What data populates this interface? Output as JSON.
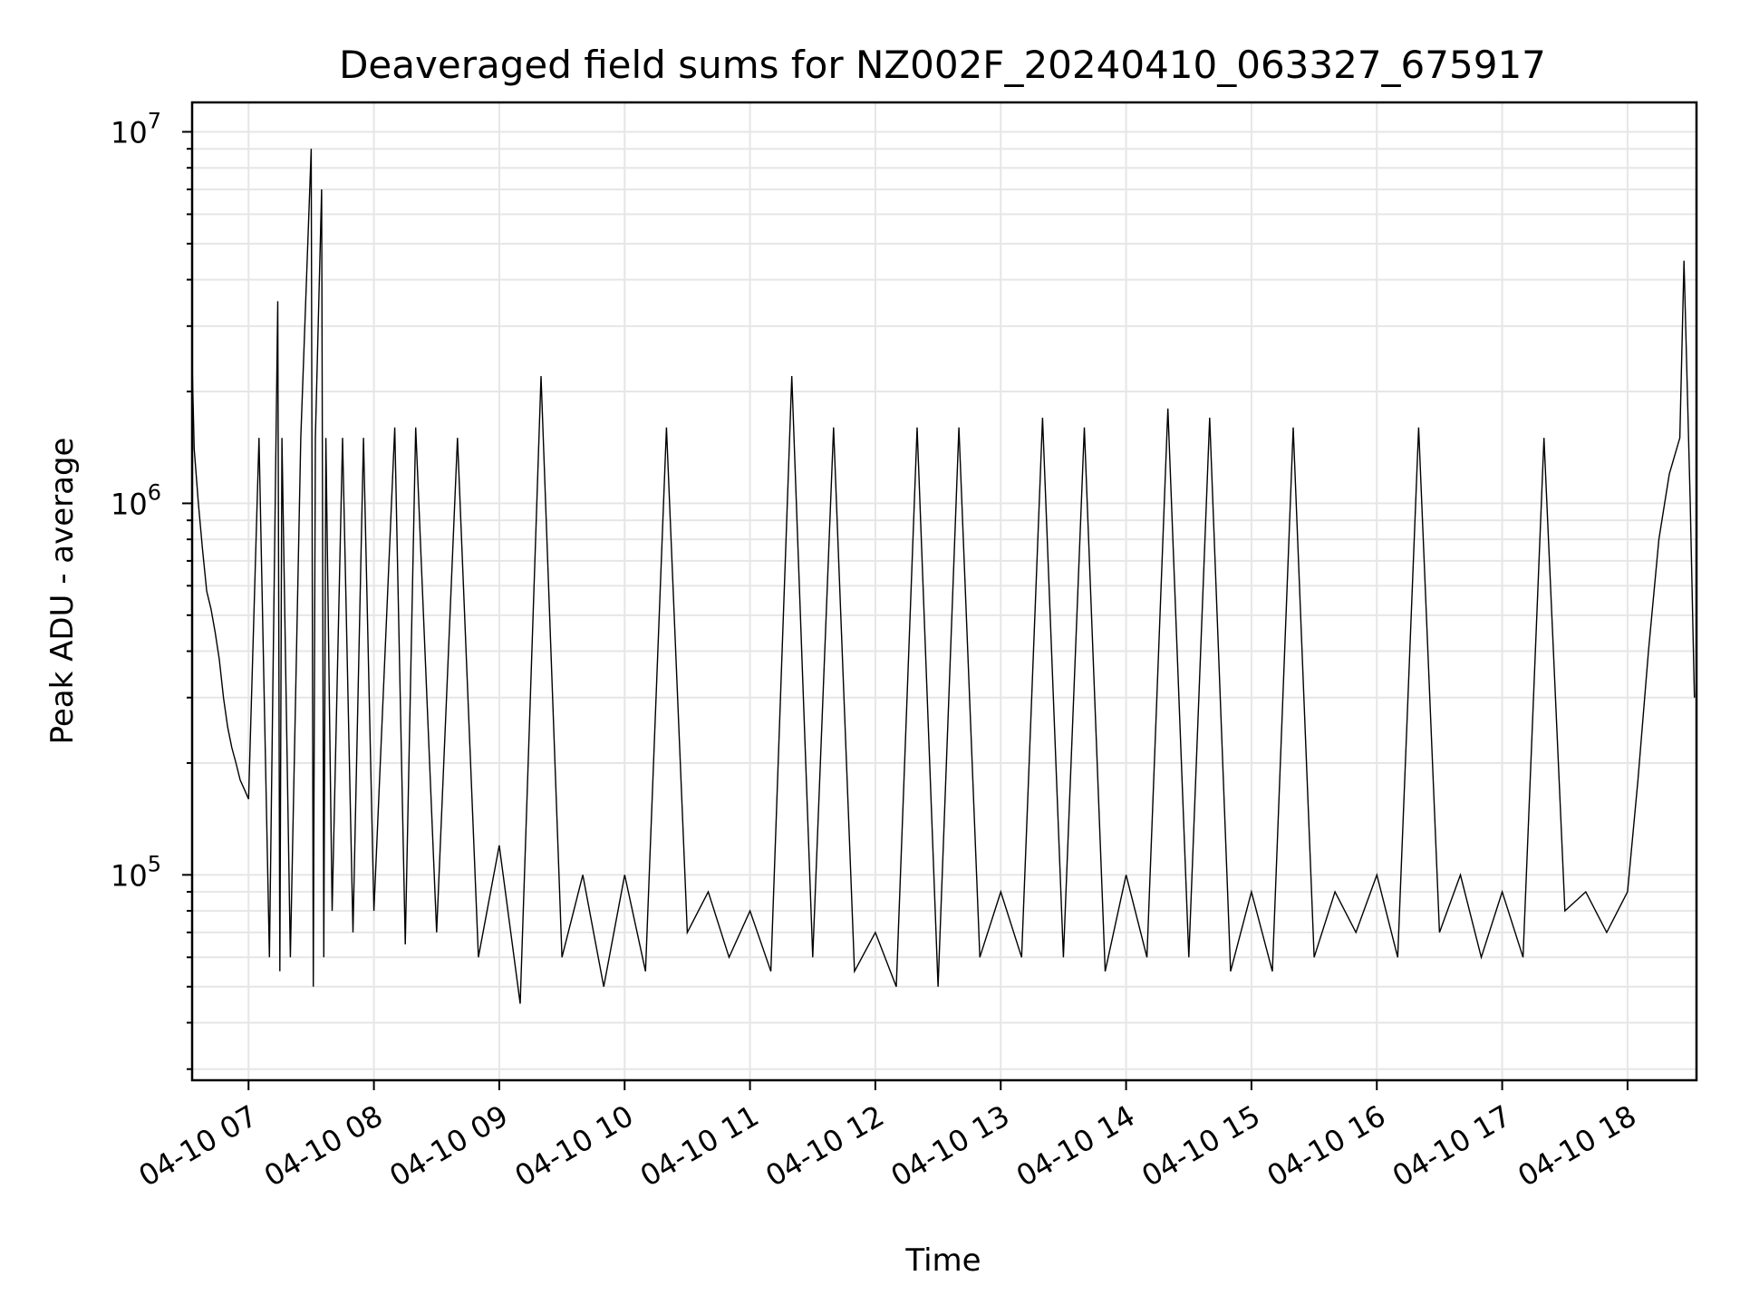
{
  "chart_data": {
    "type": "line",
    "title": "Deaveraged field sums for NZ002F_20240410_063327_675917",
    "xlabel": "Time",
    "ylabel": "Peak ADU - average",
    "yscale": "log",
    "ylim": [
      28000,
      12000000
    ],
    "xlim": [
      "2024-04-10 06:33",
      "2024-04-10 18:33"
    ],
    "grid": true,
    "x_ticks": [
      {
        "value": "2024-04-10 07:00",
        "label": "04-10 07"
      },
      {
        "value": "2024-04-10 08:00",
        "label": "04-10 08"
      },
      {
        "value": "2024-04-10 09:00",
        "label": "04-10 09"
      },
      {
        "value": "2024-04-10 10:00",
        "label": "04-10 10"
      },
      {
        "value": "2024-04-10 11:00",
        "label": "04-10 11"
      },
      {
        "value": "2024-04-10 12:00",
        "label": "04-10 12"
      },
      {
        "value": "2024-04-10 13:00",
        "label": "04-10 13"
      },
      {
        "value": "2024-04-10 14:00",
        "label": "04-10 14"
      },
      {
        "value": "2024-04-10 15:00",
        "label": "04-10 15"
      },
      {
        "value": "2024-04-10 16:00",
        "label": "04-10 16"
      },
      {
        "value": "2024-04-10 17:00",
        "label": "04-10 17"
      },
      {
        "value": "2024-04-10 18:00",
        "label": "04-10 18"
      }
    ],
    "y_ticks": [
      {
        "value": 100000,
        "base": "10",
        "exp": "5"
      },
      {
        "value": 1000000,
        "base": "10",
        "exp": "6"
      },
      {
        "value": 10000000,
        "base": "10",
        "exp": "7"
      }
    ],
    "series": [
      {
        "color": "#000000",
        "x": [
          "2024-04-10 06:33",
          "2024-04-10 06:34",
          "2024-04-10 06:36",
          "2024-04-10 06:38",
          "2024-04-10 06:40",
          "2024-04-10 06:42",
          "2024-04-10 06:44",
          "2024-04-10 06:46",
          "2024-04-10 06:48",
          "2024-04-10 06:50",
          "2024-04-10 06:52",
          "2024-04-10 06:54",
          "2024-04-10 06:56",
          "2024-04-10 06:58",
          "2024-04-10 07:00",
          "2024-04-10 07:05",
          "2024-04-10 07:10",
          "2024-04-10 07:14",
          "2024-04-10 07:15",
          "2024-04-10 07:16",
          "2024-04-10 07:20",
          "2024-04-10 07:25",
          "2024-04-10 07:30",
          "2024-04-10 07:31",
          "2024-04-10 07:32",
          "2024-04-10 07:35",
          "2024-04-10 07:36",
          "2024-04-10 07:37",
          "2024-04-10 07:40",
          "2024-04-10 07:45",
          "2024-04-10 07:50",
          "2024-04-10 07:55",
          "2024-04-10 08:00",
          "2024-04-10 08:10",
          "2024-04-10 08:15",
          "2024-04-10 08:20",
          "2024-04-10 08:30",
          "2024-04-10 08:40",
          "2024-04-10 08:50",
          "2024-04-10 09:00",
          "2024-04-10 09:10",
          "2024-04-10 09:20",
          "2024-04-10 09:30",
          "2024-04-10 09:40",
          "2024-04-10 09:50",
          "2024-04-10 10:00",
          "2024-04-10 10:10",
          "2024-04-10 10:20",
          "2024-04-10 10:30",
          "2024-04-10 10:40",
          "2024-04-10 10:50",
          "2024-04-10 11:00",
          "2024-04-10 11:10",
          "2024-04-10 11:20",
          "2024-04-10 11:30",
          "2024-04-10 11:40",
          "2024-04-10 11:50",
          "2024-04-10 12:00",
          "2024-04-10 12:10",
          "2024-04-10 12:20",
          "2024-04-10 12:30",
          "2024-04-10 12:40",
          "2024-04-10 12:50",
          "2024-04-10 13:00",
          "2024-04-10 13:10",
          "2024-04-10 13:20",
          "2024-04-10 13:30",
          "2024-04-10 13:40",
          "2024-04-10 13:50",
          "2024-04-10 14:00",
          "2024-04-10 14:10",
          "2024-04-10 14:20",
          "2024-04-10 14:30",
          "2024-04-10 14:40",
          "2024-04-10 14:50",
          "2024-04-10 15:00",
          "2024-04-10 15:10",
          "2024-04-10 15:20",
          "2024-04-10 15:30",
          "2024-04-10 15:40",
          "2024-04-10 15:50",
          "2024-04-10 16:00",
          "2024-04-10 16:10",
          "2024-04-10 16:20",
          "2024-04-10 16:30",
          "2024-04-10 16:40",
          "2024-04-10 16:50",
          "2024-04-10 17:00",
          "2024-04-10 17:10",
          "2024-04-10 17:20",
          "2024-04-10 17:30",
          "2024-04-10 17:40",
          "2024-04-10 17:50",
          "2024-04-10 18:00",
          "2024-04-10 18:05",
          "2024-04-10 18:10",
          "2024-04-10 18:15",
          "2024-04-10 18:20",
          "2024-04-10 18:25",
          "2024-04-10 18:27",
          "2024-04-10 18:30",
          "2024-04-10 18:32"
        ],
        "y": [
          2400000,
          1400000,
          1000000,
          750000,
          580000,
          520000,
          450000,
          380000,
          300000,
          250000,
          220000,
          200000,
          180000,
          170000,
          160000,
          1500000,
          60000,
          3500000,
          55000,
          1500000,
          60000,
          1500000,
          9000000,
          50000,
          1500000,
          7000000,
          60000,
          1500000,
          80000,
          1500000,
          70000,
          1500000,
          80000,
          1600000,
          65000,
          1600000,
          70000,
          1500000,
          60000,
          120000,
          45000,
          2200000,
          60000,
          100000,
          50000,
          100000,
          55000,
          1600000,
          70000,
          90000,
          60000,
          80000,
          55000,
          2200000,
          60000,
          1600000,
          55000,
          70000,
          50000,
          1600000,
          50000,
          1600000,
          60000,
          90000,
          60000,
          1700000,
          60000,
          1600000,
          55000,
          100000,
          60000,
          1800000,
          60000,
          1700000,
          55000,
          90000,
          55000,
          1600000,
          60000,
          90000,
          70000,
          100000,
          60000,
          1600000,
          70000,
          100000,
          60000,
          90000,
          60000,
          1500000,
          80000,
          90000,
          70000,
          90000,
          180000,
          400000,
          800000,
          1200000,
          1500000,
          4500000,
          1000000,
          300000
        ]
      }
    ]
  }
}
